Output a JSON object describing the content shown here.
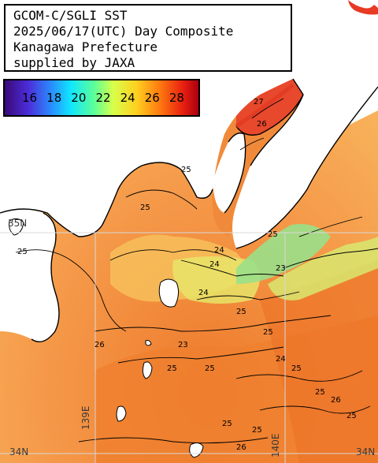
{
  "title": {
    "line1": "GCOM-C/SGLI SST",
    "line2": "2025/06/17(UTC) Day Composite",
    "line3": "Kanagawa Prefecture",
    "line4": "supplied by JAXA"
  },
  "legend": {
    "ticks": [
      "16",
      "18",
      "20",
      "22",
      "24",
      "26",
      "28"
    ],
    "colors": [
      "#3a0a78",
      "#4b2cd8",
      "#2a8cff",
      "#10e6ff",
      "#5aff9a",
      "#d8ff4a",
      "#ffd020",
      "#ff7a10",
      "#e82010",
      "#a80010"
    ]
  },
  "graticule": {
    "lat_labels": [
      "35N",
      "34N",
      "34N"
    ],
    "lon_labels": [
      "139E",
      "140E"
    ]
  },
  "contour_labels": [
    "27",
    "26",
    "25",
    "25",
    "25",
    "24",
    "24",
    "23",
    "24",
    "25",
    "25",
    "24",
    "23",
    "25",
    "25",
    "25",
    "25",
    "26",
    "25",
    "25",
    "26",
    "25",
    "26",
    "25"
  ],
  "colors": {
    "land": "#ffffff",
    "sea_base": "#f59a4a",
    "warm": "#ef7a2e",
    "cool": "#f7c860",
    "cold": "#9ae08a",
    "hot": "#e8402a",
    "grid": "#d8d8d8"
  }
}
